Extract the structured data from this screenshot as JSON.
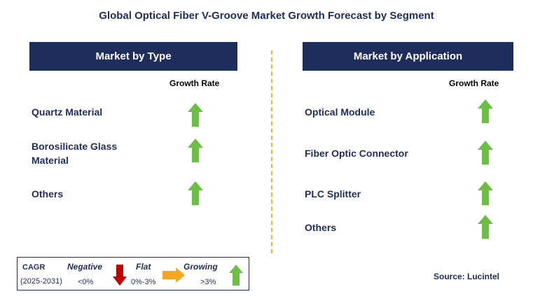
{
  "title": "Global Optical Fiber V-Groove Market Growth Forecast by Segment",
  "colors": {
    "navy": "#1f2d5c",
    "growing": "#6cbe45",
    "negative": "#c00000",
    "flat": "#f5a623",
    "divider": "#f2b23a"
  },
  "type_panel": {
    "header": "Market by Type",
    "growth_label": "Growth Rate",
    "items": [
      {
        "label": "Quartz Material",
        "trend": "growing"
      },
      {
        "label": "Borosilicate Glass Material",
        "trend": "growing"
      },
      {
        "label": "Others",
        "trend": "growing"
      }
    ]
  },
  "application_panel": {
    "header": "Market by Application",
    "growth_label": "Growth Rate",
    "items": [
      {
        "label": "Optical Module",
        "trend": "growing"
      },
      {
        "label": "Fiber Optic Connector",
        "trend": "growing"
      },
      {
        "label": "PLC Splitter",
        "trend": "growing"
      },
      {
        "label": "Others",
        "trend": "growing"
      }
    ]
  },
  "legend": {
    "cagr_label": "CAGR",
    "period": "(2025-2031)",
    "negative": {
      "label": "Negative",
      "range": "<0%"
    },
    "flat": {
      "label": "Flat",
      "range": "0%-3%"
    },
    "growing": {
      "label": "Growing",
      "range": ">3%"
    }
  },
  "source": "Source: Lucintel"
}
